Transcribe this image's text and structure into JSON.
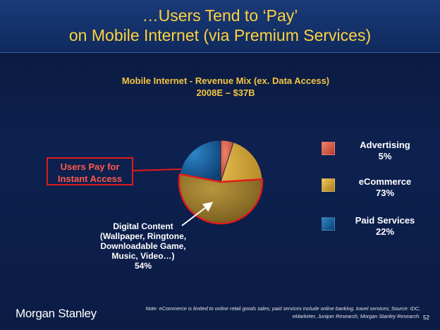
{
  "slide": {
    "title_line1": "…Users Tend to ‘Pay’",
    "title_line2": "on Mobile Internet (via Premium Services)",
    "callout": {
      "line1": "Users Pay for",
      "line2": "Instant Access"
    },
    "digital_content": {
      "line1": "Digital Content",
      "line2": "(Wallpaper, Ringtone,",
      "line3": "Downloadable Game,",
      "line4": "Music, Video…)",
      "line5": "54%"
    },
    "footer": {
      "brand": "Morgan Stanley",
      "note_line1": "Note: eCommerce is limited to online retail goods sales; paid services include online banking, travel services; Source: IDC,",
      "note_line2": "eMarketer, Juniper Research, Morgan Stanley Research.",
      "page_number": "52"
    },
    "colors": {
      "title": "#ffd23f",
      "accent_red": "#e11b1b"
    }
  },
  "chart_data": {
    "type": "pie",
    "title": "Mobile Internet - Revenue Mix (ex. Data Access)",
    "subtitle": "2008E – $37B",
    "slices": [
      {
        "name": "Advertising",
        "value": 5,
        "label": "5%",
        "color": "#e0604a"
      },
      {
        "name": "eCommerce",
        "value": 73,
        "label": "73%",
        "color": "#e6b43c"
      },
      {
        "name": "Paid Services",
        "value": 22,
        "label": "22%",
        "color": "#1a6fb0"
      }
    ],
    "highlight": {
      "name": "Digital Content",
      "value": 54,
      "label": "54%"
    },
    "legend_position": "right"
  }
}
